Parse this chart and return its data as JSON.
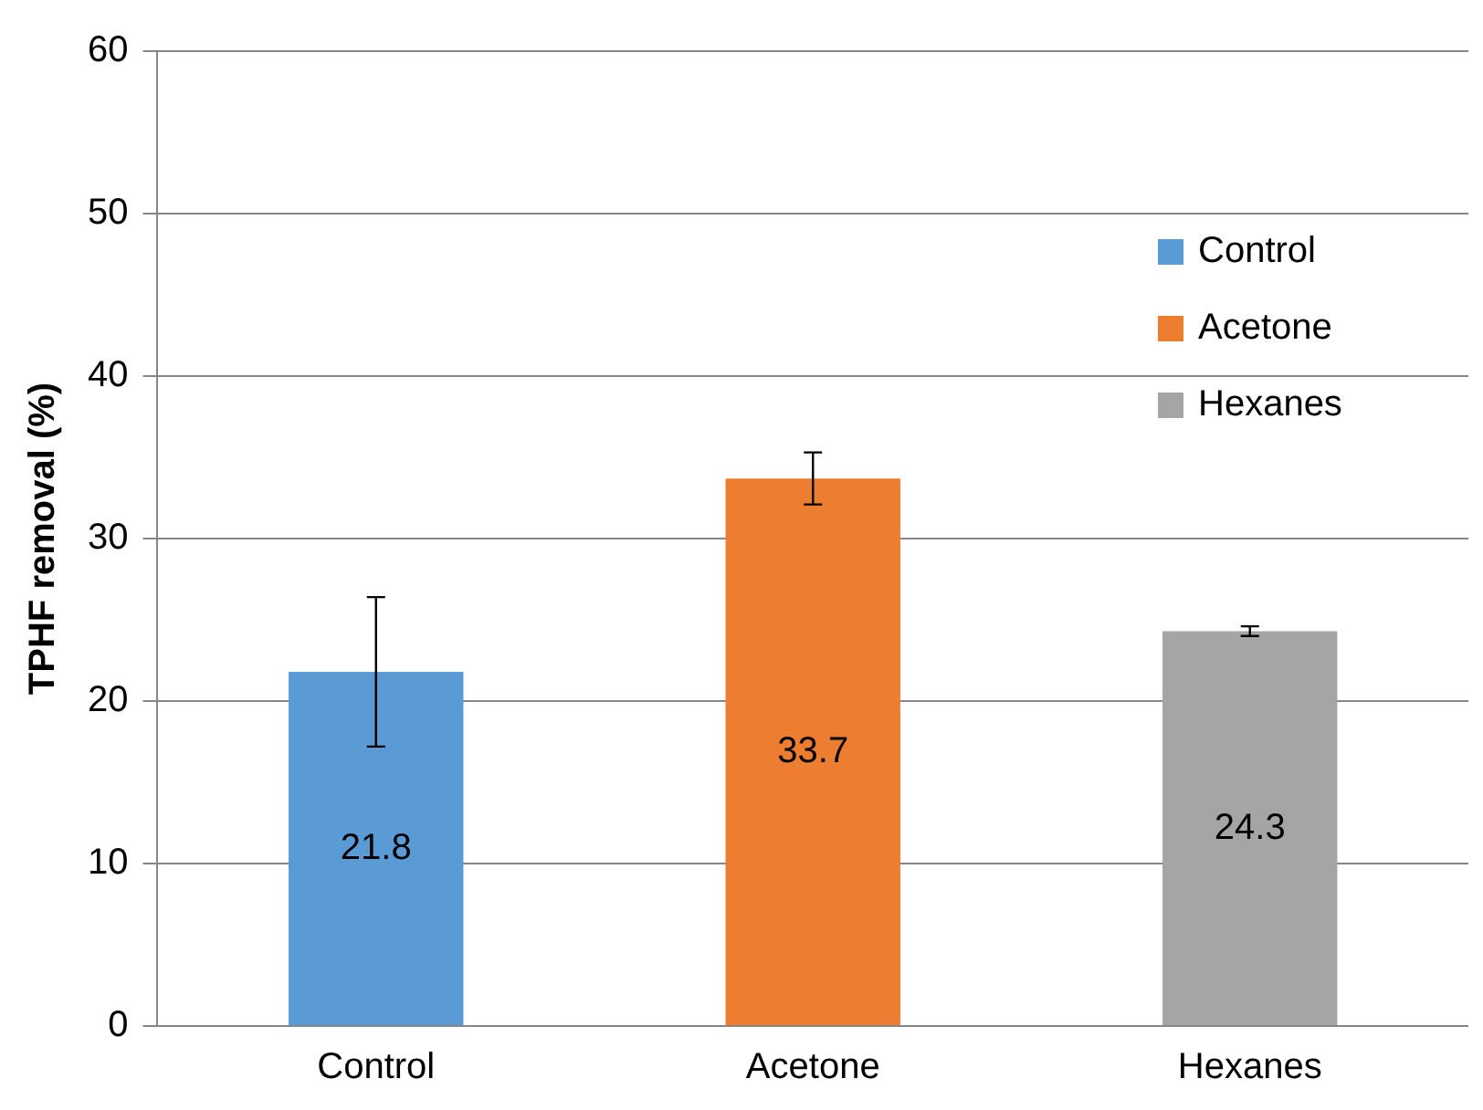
{
  "chart_data": {
    "type": "bar",
    "ylabel": "TPHF removal (%)",
    "categories": [
      "Control",
      "Acetone",
      "Hexanes"
    ],
    "series": [
      {
        "name": "Control",
        "color": "#5b9bd5",
        "values": [
          21.8,
          null,
          null
        ],
        "errors": [
          4.6,
          null,
          null
        ]
      },
      {
        "name": "Acetone",
        "color": "#ed7d31",
        "values": [
          null,
          33.7,
          null
        ],
        "errors": [
          null,
          1.6,
          null
        ]
      },
      {
        "name": "Hexanes",
        "color": "#a5a5a5",
        "values": [
          null,
          null,
          24.3
        ],
        "errors": [
          null,
          null,
          0.3
        ]
      }
    ],
    "ylim": [
      0,
      60
    ],
    "yticks": [
      0,
      10,
      20,
      30,
      40,
      50,
      60
    ],
    "grid": "y",
    "legend": "top right",
    "data_labels": true
  }
}
